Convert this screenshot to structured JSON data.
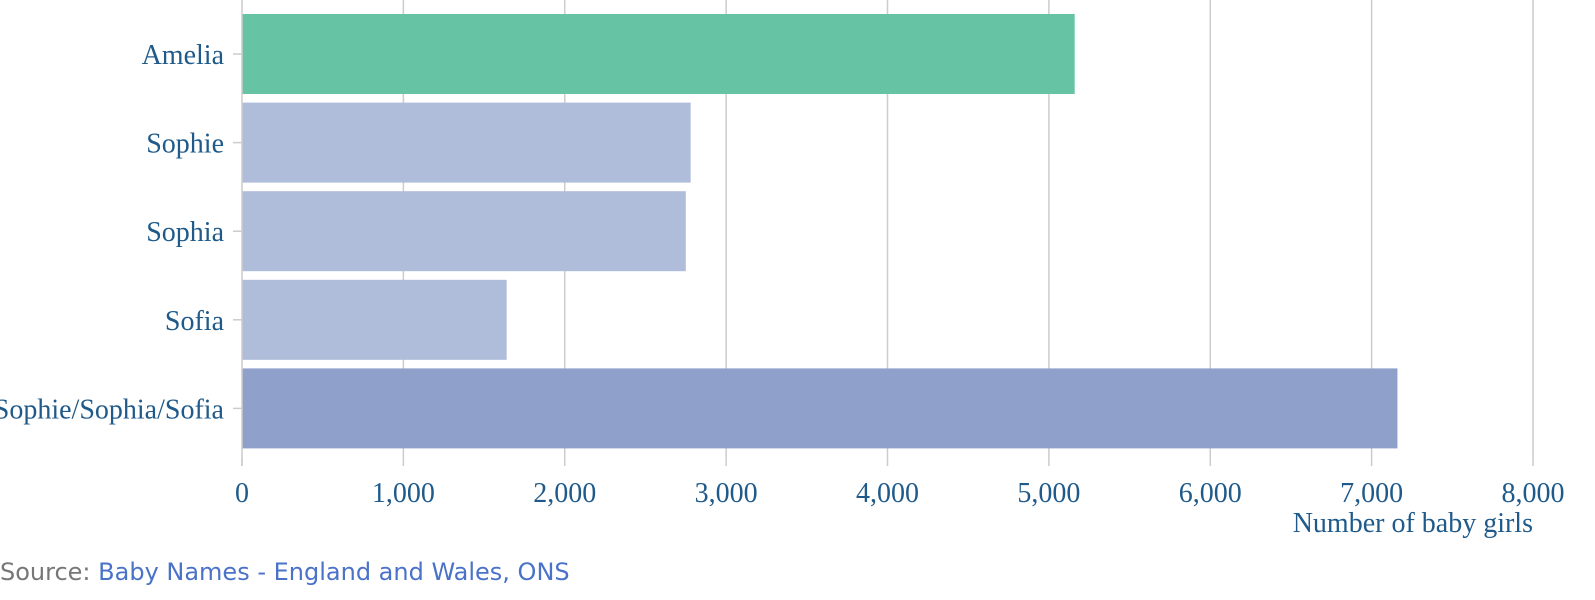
{
  "chart_data": {
    "type": "bar",
    "orientation": "horizontal",
    "categories": [
      "Amelia",
      "Sophie",
      "Sophia",
      "Sofia",
      "Sophie/Sophia/Sofia"
    ],
    "values": [
      5160,
      2780,
      2750,
      1640,
      7160
    ],
    "colors": [
      "#66c4a5",
      "#afbcda",
      "#afbcda",
      "#afbcda",
      "#8fa1cb"
    ],
    "xlabel": "Number of baby girls",
    "ylabel": "",
    "xlim": [
      0,
      8000
    ],
    "xticks": [
      0,
      1000,
      2000,
      3000,
      4000,
      5000,
      6000,
      7000,
      8000
    ],
    "xtick_labels": [
      "0",
      "1,000",
      "2,000",
      "3,000",
      "4,000",
      "5,000",
      "6,000",
      "7,000",
      "8,000"
    ],
    "grid": "vertical",
    "legend": "none"
  },
  "source": {
    "prefix": "Source: ",
    "link_text": "Baby Names - England and Wales, ONS"
  },
  "colors": {
    "text": "#1f5a8a",
    "grid": "#cccccc",
    "link": "#4a72c8"
  }
}
